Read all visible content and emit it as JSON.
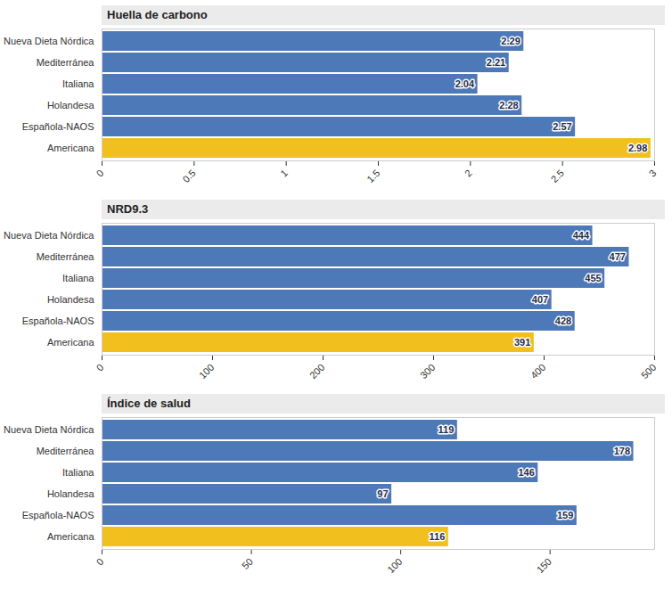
{
  "chart_data": [
    {
      "type": "bar",
      "title": "Huella de carbono",
      "orientation": "horizontal",
      "data_labels": true,
      "categories": [
        "Nueva Dieta Nórdica",
        "Mediterránea",
        "Italiana",
        "Holandesa",
        "Española-NAOS",
        "Americana"
      ],
      "values": [
        2.29,
        2.21,
        2.04,
        2.28,
        2.57,
        2.98
      ],
      "colors": [
        "#4e79b8",
        "#4e79b8",
        "#4e79b8",
        "#4e79b8",
        "#4e79b8",
        "#f2c01e"
      ],
      "xlim": [
        0,
        3
      ],
      "xticks": [
        0,
        0.5,
        1,
        1.5,
        2,
        2.5,
        3
      ]
    },
    {
      "type": "bar",
      "title": "NRD9.3",
      "orientation": "horizontal",
      "data_labels": true,
      "categories": [
        "Nueva Dieta Nórdica",
        "Mediterránea",
        "Italiana",
        "Holandesa",
        "Española-NAOS",
        "Americana"
      ],
      "values": [
        444,
        477,
        455,
        407,
        428,
        391
      ],
      "colors": [
        "#4e79b8",
        "#4e79b8",
        "#4e79b8",
        "#4e79b8",
        "#4e79b8",
        "#f2c01e"
      ],
      "xlim": [
        0,
        500
      ],
      "xticks": [
        0,
        100,
        200,
        300,
        400,
        500
      ]
    },
    {
      "type": "bar",
      "title": "Índice de salud",
      "orientation": "horizontal",
      "data_labels": true,
      "categories": [
        "Nueva Dieta Nórdica",
        "Mediterránea",
        "Italiana",
        "Holandesa",
        "Española-NAOS",
        "Americana"
      ],
      "values": [
        119,
        178,
        146,
        97,
        159,
        116
      ],
      "colors": [
        "#4e79b8",
        "#4e79b8",
        "#4e79b8",
        "#4e79b8",
        "#4e79b8",
        "#f2c01e"
      ],
      "xlim": [
        0,
        185
      ],
      "xticks": [
        0,
        50,
        100,
        150
      ]
    }
  ]
}
